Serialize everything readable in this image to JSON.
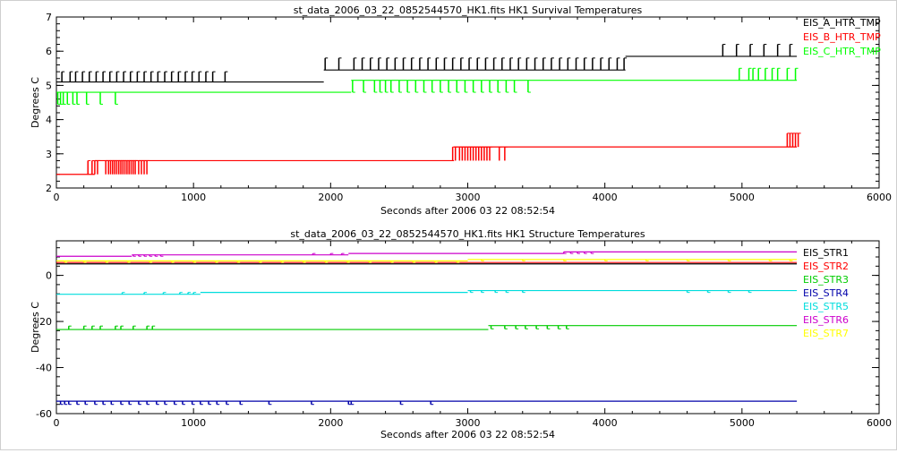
{
  "chart_data": [
    {
      "type": "line",
      "title": "st_data_2006_03_22_0852544570_HK1.fits HK1 Survival Temperatures",
      "xlabel": "Seconds after 2006 03 22 08:52:54",
      "ylabel": "Degrees C",
      "xlim": [
        0,
        6000
      ],
      "ylim": [
        2,
        7
      ],
      "x_ticks": [
        0,
        1000,
        2000,
        3000,
        4000,
        5000,
        6000
      ],
      "y_ticks": [
        2,
        3,
        4,
        5,
        6,
        7
      ],
      "grid": false,
      "legend_position": "top-right",
      "series": [
        {
          "name": "EIS_A_HTR_TMP",
          "color": "#000000",
          "segments": [
            {
              "x": [
                0,
                1950
              ],
              "y": 5.1
            },
            {
              "x": [
                1950,
                4150
              ],
              "y": 5.45
            },
            {
              "x": [
                4150,
                5400
              ],
              "y": 5.85
            }
          ],
          "spikes": [
            {
              "x": [
                40,
                100,
                140,
                190,
                240,
                290,
                340,
                390,
                440,
                490,
                540,
                590,
                640,
                690,
                740,
                790,
                840,
                890,
                940,
                990,
                1040,
                1090,
                1140,
                1230
              ],
              "from": 5.1,
              "to": 5.4
            },
            {
              "x": [
                1960,
                2060,
                2170,
                2230,
                2290,
                2350,
                2410,
                2470,
                2530,
                2590,
                2650,
                2710,
                2770,
                2830,
                2890,
                2950,
                3010,
                3070,
                3130,
                3190,
                3250,
                3310,
                3370,
                3430,
                3490,
                3550,
                3610,
                3670,
                3730,
                3790,
                3850,
                3910,
                3970,
                4030,
                4090,
                4140
              ],
              "from": 5.45,
              "to": 5.8
            },
            {
              "x": [
                4860,
                4960,
                5060,
                5160,
                5260,
                5350
              ],
              "from": 5.85,
              "to": 6.2
            }
          ]
        },
        {
          "name": "EIS_B_HTR_TMP",
          "color": "#ff0000",
          "segments": [
            {
              "x": [
                0,
                280
              ],
              "y": 2.4
            },
            {
              "x": [
                280,
                2900
              ],
              "y": 2.8
            },
            {
              "x": [
                2900,
                5400
              ],
              "y": 3.2
            }
          ],
          "spikes": [
            {
              "x": [
                230,
                260,
                280,
                300,
                360,
                380,
                395,
                410,
                425,
                440,
                455,
                470,
                485,
                500,
                515,
                530,
                545,
                560,
                575,
                600,
                620,
                640,
                660
              ],
              "from": 2.4,
              "to": 2.8
            },
            {
              "x": [
                2890,
                2910,
                2940,
                2960,
                2980,
                3000,
                3020,
                3040,
                3060,
                3080,
                3100,
                3120,
                3140,
                3160,
                3230,
                3270
              ],
              "from": 2.8,
              "to": 3.2
            },
            {
              "x": [
                5330,
                5350,
                5370,
                5390,
                5410
              ],
              "from": 3.2,
              "to": 3.6
            }
          ]
        },
        {
          "name": "EIS_C_HTR_TMP",
          "color": "#00ff00",
          "segments": [
            {
              "x": [
                0,
                2150
              ],
              "y": 4.8
            },
            {
              "x": [
                2150,
                5400
              ],
              "y": 5.15
            }
          ],
          "spikes": [
            {
              "x": [
                10,
                30,
                50,
                80,
                120,
                150,
                220,
                320,
                430
              ],
              "from": 4.8,
              "to": 4.45
            },
            {
              "x": [
                2160,
                2240,
                2320,
                2360,
                2400,
                2440,
                2500,
                2560,
                2620,
                2680,
                2740,
                2800,
                2860,
                2920,
                2980,
                3040,
                3100,
                3160,
                3220,
                3280,
                3340,
                3440
              ],
              "from": 5.15,
              "to": 4.8
            },
            {
              "x": [
                4980,
                5050,
                5080,
                5120,
                5170,
                5220,
                5260,
                5330,
                5390
              ],
              "from": 5.15,
              "to": 5.5
            }
          ]
        }
      ]
    },
    {
      "type": "line",
      "title": "st_data_2006_03_22_0852544570_HK1.fits HK1 Structure Temperatures",
      "xlabel": "Seconds after 2006 03 22 08:52:54",
      "ylabel": "Degrees C",
      "xlim": [
        0,
        6000
      ],
      "ylim": [
        -60,
        15
      ],
      "x_ticks": [
        0,
        1000,
        2000,
        3000,
        4000,
        5000,
        6000
      ],
      "y_ticks": [
        -60,
        -40,
        -20,
        0
      ],
      "grid": false,
      "legend_position": "top-right",
      "series": [
        {
          "name": "EIS_STR1",
          "color": "#000000",
          "segments": [
            {
              "x": [
                0,
                5400
              ],
              "y": 5.0
            }
          ],
          "spikes": []
        },
        {
          "name": "EIS_STR2",
          "color": "#ff0000",
          "segments": [
            {
              "x": [
                0,
                5400
              ],
              "y": 5.6
            }
          ],
          "spikes": []
        },
        {
          "name": "EIS_STR3",
          "color": "#00cc00",
          "segments": [
            {
              "x": [
                0,
                3150
              ],
              "y": -23.5
            },
            {
              "x": [
                3150,
                5400
              ],
              "y": -21.8
            }
          ],
          "spikes": [
            {
              "x": [
                90,
                200,
                260,
                320,
                430,
                470,
                560,
                660,
                700
              ],
              "from": -23.5,
              "to": -22.0
            },
            {
              "x": [
                3170,
                3270,
                3350,
                3420,
                3500,
                3580,
                3660,
                3720
              ],
              "from": -21.8,
              "to": -23.2
            }
          ]
        },
        {
          "name": "EIS_STR4",
          "color": "#0000aa",
          "segments": [
            {
              "x": [
                0,
                5400
              ],
              "y": -54.6
            }
          ],
          "spikes": [
            {
              "x": [
                30,
                60,
                90,
                150,
                210,
                280,
                340,
                400,
                470,
                530,
                600,
                660,
                730,
                790,
                860,
                920,
                990,
                1050,
                1110,
                1170,
                1240,
                1340,
                1550,
                1860,
                2130,
                2150,
                2510,
                2730
              ],
              "from": -54.6,
              "to": -56.0
            }
          ]
        },
        {
          "name": "EIS_STR5",
          "color": "#00dddd",
          "segments": [
            {
              "x": [
                0,
                1050
              ],
              "y": -8.2
            },
            {
              "x": [
                1050,
                3000
              ],
              "y": -7.4
            },
            {
              "x": [
                3000,
                5400
              ],
              "y": -6.6
            }
          ],
          "spikes": [
            {
              "x": [
                480,
                640,
                780,
                900,
                960,
                1000
              ],
              "from": -8.2,
              "to": -7.4
            },
            {
              "x": [
                3020,
                3100,
                3200,
                3280,
                3400,
                4600,
                4750,
                4900,
                5050
              ],
              "from": -6.6,
              "to": -7.4
            }
          ]
        },
        {
          "name": "EIS_STR6",
          "color": "#cc00cc",
          "segments": [
            {
              "x": [
                0,
                550
              ],
              "y": 8.3
            },
            {
              "x": [
                550,
                2130
              ],
              "y": 8.9
            },
            {
              "x": [
                2130,
                3700
              ],
              "y": 9.5
            },
            {
              "x": [
                3700,
                5400
              ],
              "y": 10.2
            }
          ],
          "spikes": [
            {
              "x": [
                560,
                600,
                640,
                680,
                720,
                760
              ],
              "from": 8.9,
              "to": 8.3
            },
            {
              "x": [
                1870,
                2000,
                2080
              ],
              "from": 8.9,
              "to": 9.5
            },
            {
              "x": [
                3700,
                3750,
                3800,
                3850,
                3900
              ],
              "from": 10.2,
              "to": 9.5
            }
          ]
        },
        {
          "name": "EIS_STR7",
          "color": "#ffff00",
          "segments": [
            {
              "x": [
                0,
                3000
              ],
              "y": 6.3
            },
            {
              "x": [
                3000,
                5400
              ],
              "y": 6.9
            }
          ],
          "spikes": [
            {
              "x": [
                60,
                200,
                360,
                520,
                680,
                840,
                1000,
                1160,
                1320,
                1480,
                1640,
                1800,
                1960,
                2120,
                2280,
                2440,
                2600,
                2760,
                2920
              ],
              "from": 6.3,
              "to": 5.7
            },
            {
              "x": [
                3100,
                3400,
                3700,
                4000,
                4300,
                4600,
                4900,
                5200,
                5350
              ],
              "from": 6.9,
              "to": 6.3
            }
          ]
        }
      ]
    }
  ]
}
